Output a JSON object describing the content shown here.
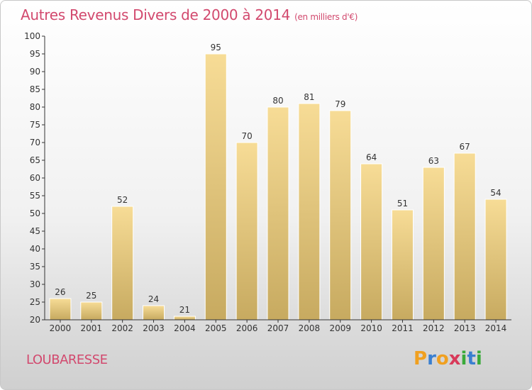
{
  "title": "Autres Revenus Divers de 2000 à 2014",
  "subtitle": "(en milliers d'€)",
  "commune": "LOUBARESSE",
  "logo": {
    "letters": [
      "P",
      "r",
      "o",
      "x",
      "i",
      "t",
      "i"
    ],
    "colors": [
      "#f0a020",
      "#3a7fd0",
      "#f0a020",
      "#d83a5a",
      "#3aaa3a",
      "#3a7fd0",
      "#3aaa3a"
    ]
  },
  "colors": {
    "accent": "#d2496e",
    "bar_top": "#f7dc96",
    "bar_bottom": "#c7aa60",
    "axis": "#333333"
  },
  "chart_data": {
    "type": "bar",
    "categories": [
      "2000",
      "2001",
      "2002",
      "2003",
      "2004",
      "2005",
      "2006",
      "2007",
      "2008",
      "2009",
      "2010",
      "2011",
      "2012",
      "2013",
      "2014"
    ],
    "values": [
      26,
      25,
      52,
      24,
      21,
      95,
      70,
      80,
      81,
      79,
      64,
      51,
      63,
      67,
      54
    ],
    "ylim": [
      20,
      100
    ],
    "yticks": [
      20,
      25,
      30,
      35,
      40,
      45,
      50,
      55,
      60,
      65,
      70,
      75,
      80,
      85,
      90,
      95,
      100
    ],
    "grid": false,
    "xlabel": "",
    "ylabel": ""
  }
}
